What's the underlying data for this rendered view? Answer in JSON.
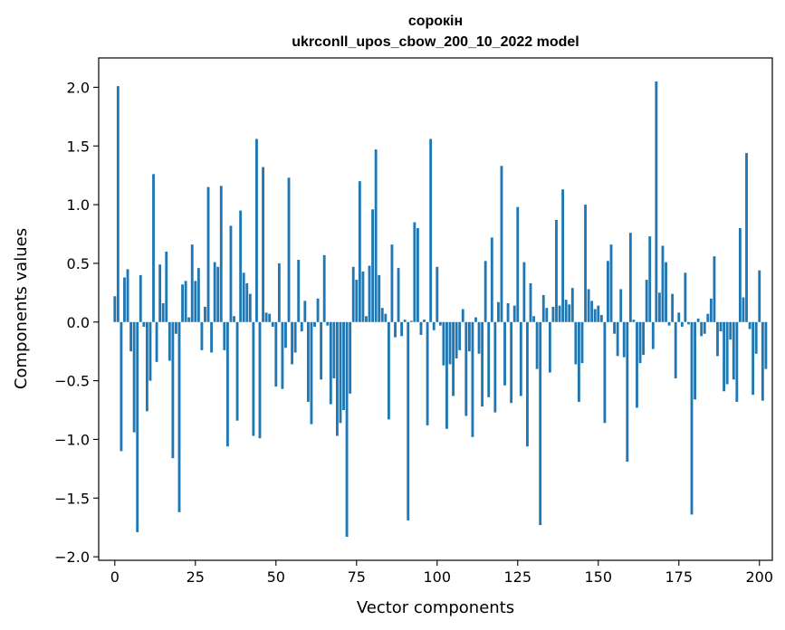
{
  "chart_data": {
    "type": "bar",
    "title_line1": "сорокін",
    "title_line2": "ukrconll_upos_cbow_200_10_2022 model",
    "xlabel": "Vector components",
    "ylabel": "Components values",
    "xlim": [
      -5,
      204
    ],
    "ylim": [
      -2.03,
      2.25
    ],
    "xticks": [
      0,
      25,
      50,
      75,
      100,
      125,
      150,
      175,
      200
    ],
    "yticks": [
      -2.0,
      -1.5,
      -1.0,
      -0.5,
      0.0,
      0.5,
      1.0,
      1.5,
      2.0
    ],
    "ytick_labels": [
      "−2.0",
      "−1.5",
      "−1.0",
      "−0.5",
      "0.0",
      "0.5",
      "1.0",
      "1.5",
      "2.0"
    ],
    "bar_color": "#1f77b4",
    "values": [
      0.22,
      2.01,
      -1.1,
      0.38,
      0.45,
      -0.25,
      -0.94,
      -1.79,
      0.4,
      -0.04,
      -0.76,
      -0.5,
      1.26,
      -0.34,
      0.49,
      0.16,
      0.6,
      -0.33,
      -1.16,
      -0.1,
      -1.62,
      0.32,
      0.35,
      0.04,
      0.66,
      0.35,
      0.46,
      -0.24,
      0.13,
      1.15,
      -0.26,
      0.51,
      0.47,
      1.16,
      -0.24,
      -1.06,
      0.82,
      0.05,
      -0.84,
      0.95,
      0.42,
      0.33,
      0.24,
      -0.97,
      1.56,
      -0.99,
      1.32,
      0.08,
      0.07,
      -0.04,
      -0.55,
      0.5,
      -0.57,
      -0.22,
      1.23,
      -0.36,
      -0.26,
      0.53,
      -0.08,
      0.18,
      -0.68,
      -0.87,
      -0.04,
      0.2,
      -0.49,
      0.57,
      -0.03,
      -0.7,
      -0.48,
      -0.97,
      -0.86,
      -0.75,
      -1.83,
      -0.61,
      0.47,
      0.36,
      1.2,
      0.43,
      0.05,
      0.48,
      0.96,
      1.47,
      0.4,
      0.12,
      0.07,
      -0.83,
      0.66,
      -0.13,
      0.46,
      -0.12,
      0.02,
      -1.69,
      0.01,
      0.85,
      0.8,
      -0.11,
      0.02,
      -0.88,
      1.56,
      -0.07,
      0.47,
      -0.03,
      -0.37,
      -0.91,
      -0.36,
      -0.63,
      -0.31,
      -0.24,
      0.11,
      -0.8,
      -0.25,
      -0.98,
      0.04,
      -0.27,
      -0.72,
      0.52,
      -0.64,
      0.72,
      -0.77,
      0.17,
      1.33,
      -0.54,
      0.16,
      -0.69,
      0.14,
      0.98,
      -0.63,
      0.51,
      -1.06,
      0.33,
      0.05,
      -0.4,
      -1.73,
      0.23,
      0.12,
      -0.43,
      0.13,
      0.87,
      0.14,
      1.13,
      0.19,
      0.15,
      0.29,
      -0.36,
      -0.68,
      -0.35,
      1.0,
      0.28,
      0.18,
      0.11,
      0.14,
      0.06,
      -0.86,
      0.52,
      0.66,
      -0.1,
      -0.29,
      0.28,
      -0.3,
      -1.19,
      0.76,
      0.02,
      -0.73,
      -0.35,
      -0.28,
      0.36,
      0.73,
      -0.23,
      2.05,
      0.25,
      0.65,
      0.51,
      -0.03,
      0.24,
      -0.48,
      0.08,
      -0.04,
      0.42,
      -0.02,
      -1.64,
      -0.66,
      0.03,
      -0.12,
      -0.1,
      0.07,
      0.2,
      0.56,
      -0.29,
      -0.08,
      -0.59,
      -0.53,
      -0.15,
      -0.49,
      -0.68,
      0.8,
      0.21,
      1.44,
      -0.06,
      -0.62,
      -0.27,
      0.44,
      -0.67,
      -0.4
    ]
  }
}
